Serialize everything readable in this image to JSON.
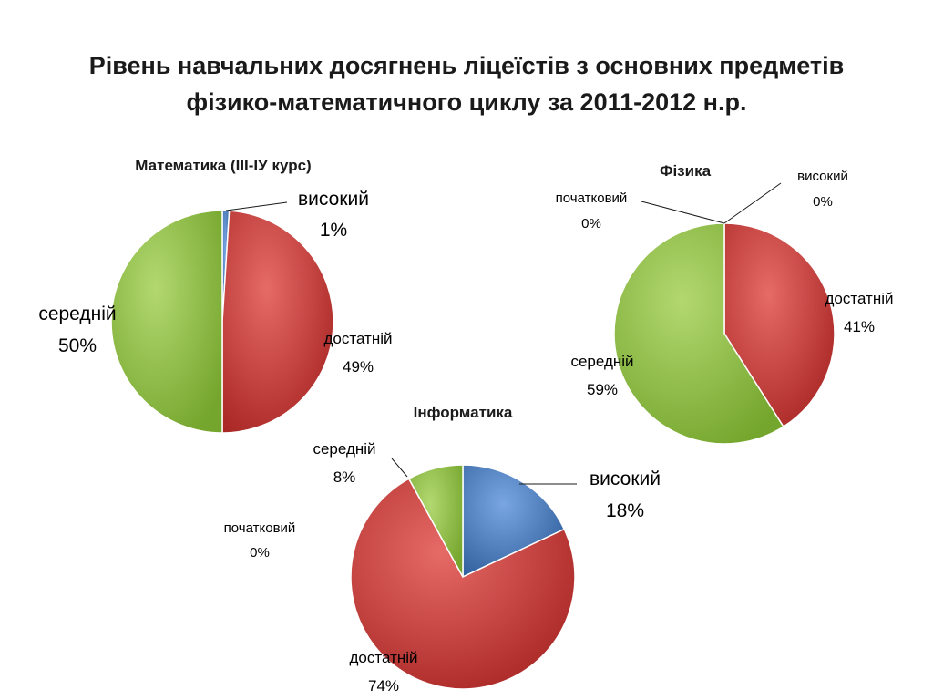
{
  "title_lines": [
    "Рівень навчальних досягнень ліцеїстів з основних предметів",
    "фізико-математичного циклу за 2011-2012 н.р."
  ],
  "colors": {
    "високий": "#4a7ebb",
    "достатній": "#cc3c3a",
    "середній": "#8fbf3f"
  },
  "chart_data": [
    {
      "type": "pie",
      "title": "Математика (III-ІУ курс)",
      "slices": [
        {
          "label": "високий",
          "value": 1,
          "value_label": "1%"
        },
        {
          "label": "достатній",
          "value": 49,
          "value_label": "49%"
        },
        {
          "label": "середній",
          "value": 50,
          "value_label": "50%"
        }
      ]
    },
    {
      "type": "pie",
      "title": "Фізика",
      "slices": [
        {
          "label": "високий",
          "value": 0,
          "value_label": "0%"
        },
        {
          "label": "достатній",
          "value": 41,
          "value_label": "41%"
        },
        {
          "label": "середній",
          "value": 59,
          "value_label": "59%"
        },
        {
          "label": "початковий",
          "value": 0,
          "value_label": "0%"
        }
      ]
    },
    {
      "type": "pie",
      "title": "Інформатика",
      "slices": [
        {
          "label": "високий",
          "value": 18,
          "value_label": "18%"
        },
        {
          "label": "достатній",
          "value": 74,
          "value_label": "74%"
        },
        {
          "label": "початковий",
          "value": 0,
          "value_label": "0%"
        },
        {
          "label": "середній",
          "value": 8,
          "value_label": "8%"
        }
      ]
    }
  ]
}
